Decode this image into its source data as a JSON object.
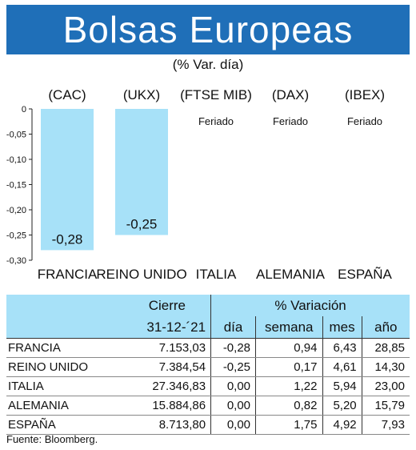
{
  "title": "Bolsas Europeas",
  "subtitle": "(% Var. día)",
  "chart_data": {
    "type": "bar",
    "indices": [
      "(CAC)",
      "(UKX)",
      "(FTSE MIB)",
      "(DAX)",
      "(IBEX)"
    ],
    "categories": [
      "FRANCIA",
      "REINO UNIDO",
      "ITALIA",
      "ALEMANIA",
      "ESPAÑA"
    ],
    "values": [
      -0.28,
      -0.25,
      null,
      null,
      null
    ],
    "value_labels": [
      "-0,28",
      "-0,25",
      "Feriado",
      "Feriado",
      "Feriado"
    ],
    "yticks": [
      "0",
      "-0,05",
      "-0,10",
      "-0,15",
      "-0,20",
      "-0,25",
      "-0,30"
    ],
    "ylim": [
      -0.3,
      0
    ],
    "bar_color": "#a7e1f8",
    "grid": false
  },
  "table": {
    "header_group": [
      "Cierre",
      "% Variación"
    ],
    "columns": [
      "31-12-´21",
      "día",
      "semana",
      "mes",
      "año"
    ],
    "rows": [
      {
        "name": "FRANCIA",
        "values": [
          "7.153,03",
          "-0,28",
          "0,94",
          "6,43",
          "28,85"
        ]
      },
      {
        "name": "REINO UNIDO",
        "values": [
          "7.384,54",
          "-0,25",
          "0,17",
          "4,61",
          "14,30"
        ]
      },
      {
        "name": "ITALIA",
        "values": [
          "27.346,83",
          "0,00",
          "1,22",
          "5,94",
          "23,00"
        ]
      },
      {
        "name": "ALEMANIA",
        "values": [
          "15.884,86",
          "0,00",
          "0,82",
          "5,20",
          "15,79"
        ]
      },
      {
        "name": "ESPAÑA",
        "values": [
          "8.713,80",
          "0,00",
          "1,75",
          "4,92",
          "7,93"
        ]
      }
    ]
  },
  "source": "Fuente: Bloomberg.",
  "colors": {
    "banner": "#1f6fb8",
    "accent": "#a7e1f8"
  }
}
